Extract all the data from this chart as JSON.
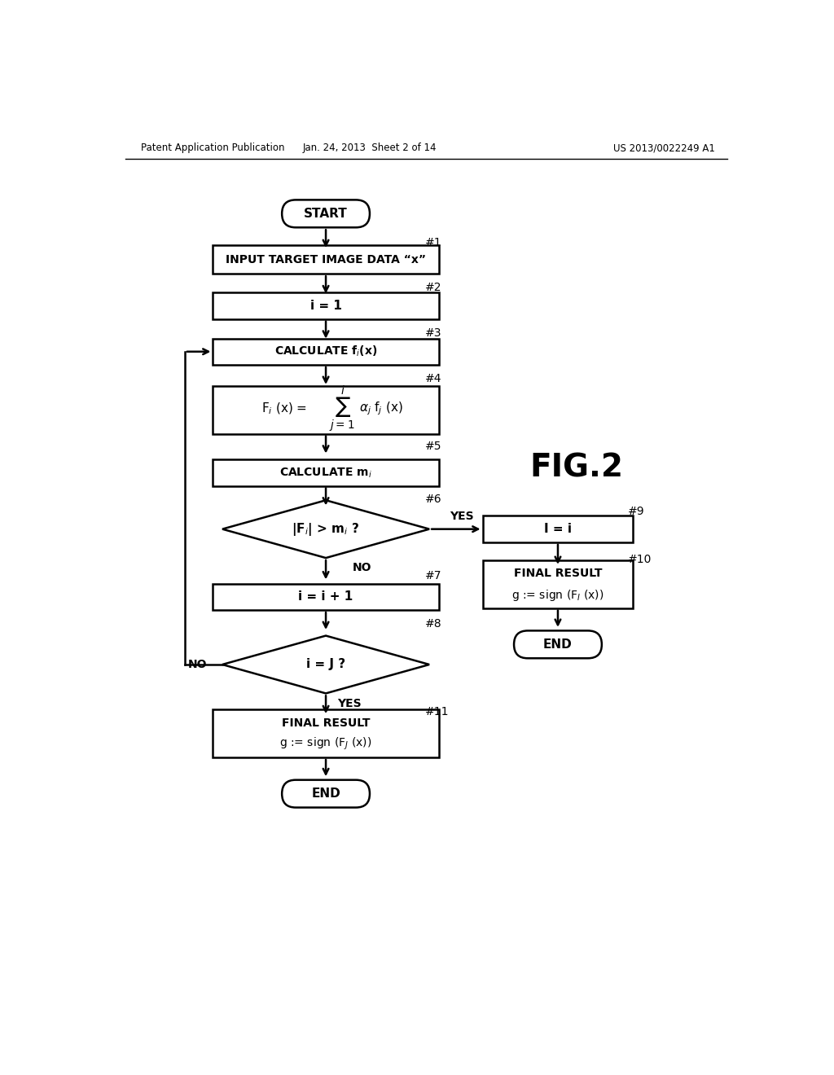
{
  "header_left": "Patent Application Publication",
  "header_mid": "Jan. 24, 2013  Sheet 2 of 14",
  "header_right": "US 2013/0022249 A1",
  "fig_label": "FIG.2",
  "background": "#ffffff",
  "line_color": "#000000",
  "box_color": "#ffffff",
  "text_color": "#000000"
}
